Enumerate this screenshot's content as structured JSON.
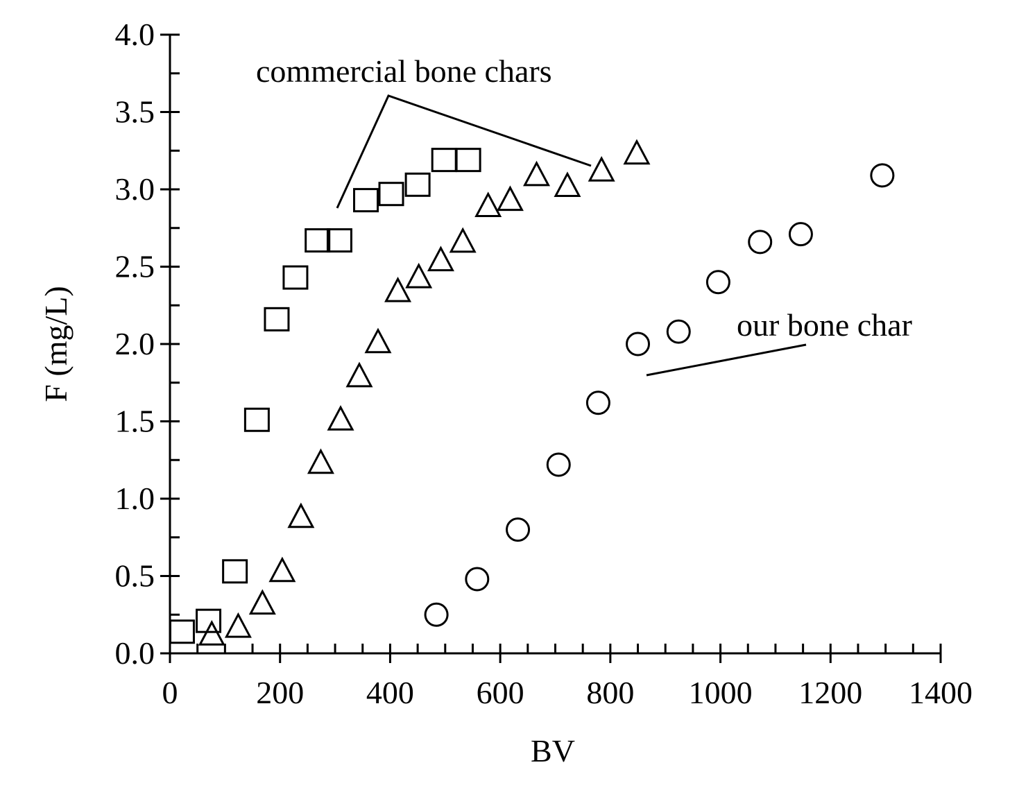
{
  "chart_data": {
    "type": "scatter",
    "xlabel": "BV",
    "ylabel": "F (mg/L)",
    "xlim": [
      0,
      1400
    ],
    "ylim": [
      0,
      4.0
    ],
    "x_ticks": [
      "0",
      "200",
      "400",
      "600",
      "800",
      "1000",
      "1200",
      "1400"
    ],
    "y_ticks": [
      "0.0",
      "0.5",
      "1.0",
      "1.5",
      "2.0",
      "2.5",
      "3.0",
      "3.5",
      "4.0"
    ],
    "grid": false,
    "legend": "none",
    "series": [
      {
        "marker": "square",
        "points": [
          [
            22,
            0.14
          ],
          [
            70,
            0.21
          ],
          [
            118,
            0.53
          ],
          [
            158,
            1.51
          ],
          [
            194,
            2.16
          ],
          [
            228,
            2.43
          ],
          [
            268,
            2.67
          ],
          [
            308,
            2.67
          ],
          [
            356,
            2.93
          ],
          [
            402,
            2.97
          ],
          [
            450,
            3.03
          ],
          [
            498,
            3.19
          ],
          [
            542,
            3.19
          ]
        ]
      },
      {
        "marker": "triangle",
        "points": [
          [
            76,
            0.12
          ],
          [
            124,
            0.17
          ],
          [
            168,
            0.32
          ],
          [
            204,
            0.53
          ],
          [
            238,
            0.88
          ],
          [
            274,
            1.23
          ],
          [
            310,
            1.51
          ],
          [
            344,
            1.79
          ],
          [
            378,
            2.01
          ],
          [
            414,
            2.34
          ],
          [
            452,
            2.43
          ],
          [
            492,
            2.54
          ],
          [
            532,
            2.66
          ],
          [
            578,
            2.89
          ],
          [
            618,
            2.93
          ],
          [
            666,
            3.09
          ],
          [
            722,
            3.02
          ],
          [
            784,
            3.12
          ],
          [
            848,
            3.23
          ]
        ]
      },
      {
        "marker": "circle",
        "points": [
          [
            484,
            0.25
          ],
          [
            558,
            0.48
          ],
          [
            632,
            0.8
          ],
          [
            706,
            1.22
          ],
          [
            778,
            1.62
          ],
          [
            850,
            2.0
          ],
          [
            924,
            2.08
          ],
          [
            996,
            2.4
          ],
          [
            1072,
            2.66
          ],
          [
            1146,
            2.71
          ],
          [
            1294,
            3.09
          ]
        ]
      }
    ],
    "annotations": [
      {
        "text": "commercial bone chars"
      },
      {
        "text": "our bone char"
      }
    ]
  }
}
